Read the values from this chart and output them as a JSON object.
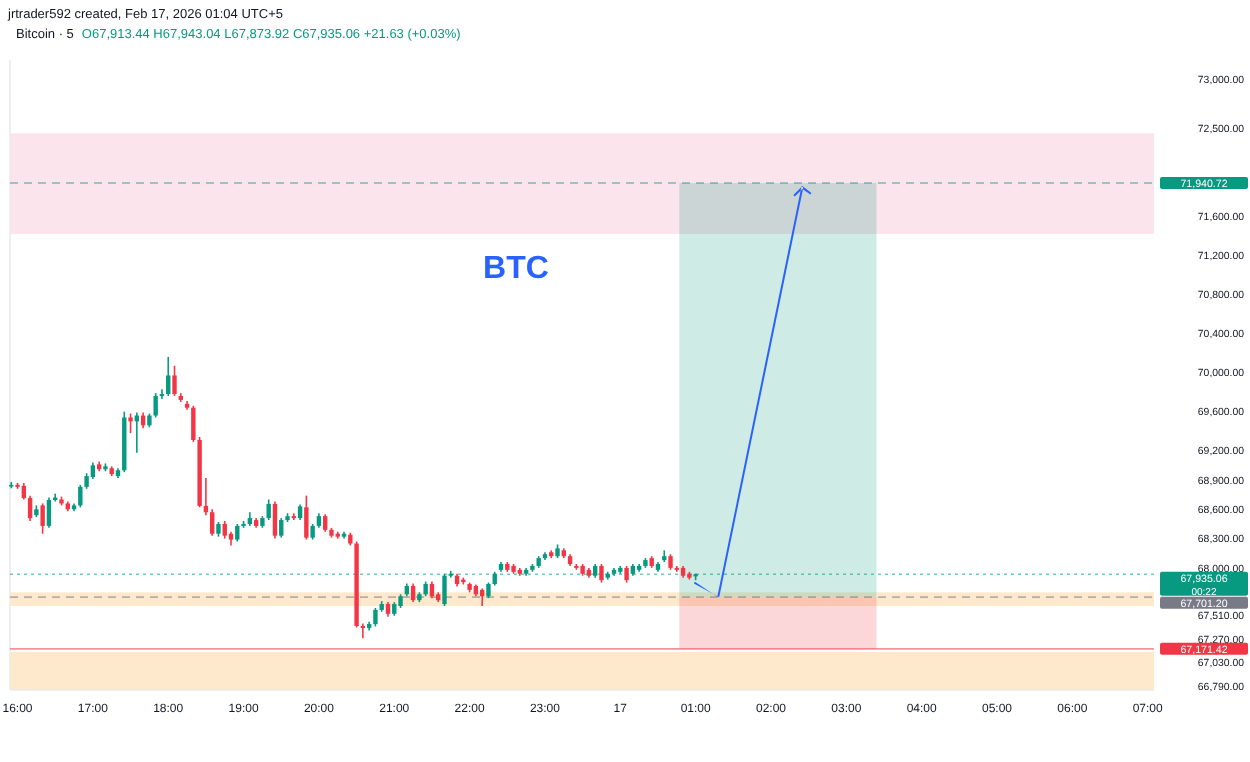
{
  "chart_data": {
    "type": "candlestick",
    "title": "Bitcoin · 5",
    "annotations": [
      "jrtrader592 created, Feb 17, 2026 01:04 UTC+5",
      "O67,913.44 H67,943.04 L67,873.92 C67,935.06 +21.63 (+0.03%)",
      "00:22",
      "BTC"
    ],
    "x": [
      "2026-02-16T15:55",
      "2026-02-16T16:00",
      "2026-02-16T16:05",
      "2026-02-16T16:10",
      "2026-02-16T16:15",
      "2026-02-16T16:20",
      "2026-02-16T16:25",
      "2026-02-16T16:30",
      "2026-02-16T16:35",
      "2026-02-16T16:40",
      "2026-02-16T16:45",
      "2026-02-16T16:50",
      "2026-02-16T16:55",
      "2026-02-16T17:00",
      "2026-02-16T17:05",
      "2026-02-16T17:10",
      "2026-02-16T17:15",
      "2026-02-16T17:20",
      "2026-02-16T17:25",
      "2026-02-16T17:30",
      "2026-02-16T17:35",
      "2026-02-16T17:40",
      "2026-02-16T17:45",
      "2026-02-16T17:50",
      "2026-02-16T17:55",
      "2026-02-16T18:00",
      "2026-02-16T18:05",
      "2026-02-16T18:10",
      "2026-02-16T18:15",
      "2026-02-16T18:20",
      "2026-02-16T18:25",
      "2026-02-16T18:30",
      "2026-02-16T18:35",
      "2026-02-16T18:40",
      "2026-02-16T18:45",
      "2026-02-16T18:50",
      "2026-02-16T18:55",
      "2026-02-16T19:00",
      "2026-02-16T19:05",
      "2026-02-16T19:10",
      "2026-02-16T19:15",
      "2026-02-16T19:20",
      "2026-02-16T19:25",
      "2026-02-16T19:30",
      "2026-02-16T19:35",
      "2026-02-16T19:40",
      "2026-02-16T19:45",
      "2026-02-16T19:50",
      "2026-02-16T19:55",
      "2026-02-16T20:00",
      "2026-02-16T20:05",
      "2026-02-16T20:10",
      "2026-02-16T20:15",
      "2026-02-16T20:20",
      "2026-02-16T20:25",
      "2026-02-16T20:30",
      "2026-02-16T20:35",
      "2026-02-16T20:40",
      "2026-02-16T20:45",
      "2026-02-16T20:50",
      "2026-02-16T20:55",
      "2026-02-16T21:00",
      "2026-02-16T21:05",
      "2026-02-16T21:10",
      "2026-02-16T21:15",
      "2026-02-16T21:20",
      "2026-02-16T21:25",
      "2026-02-16T21:30",
      "2026-02-16T21:35",
      "2026-02-16T21:40",
      "2026-02-16T21:45",
      "2026-02-16T21:50",
      "2026-02-16T21:55",
      "2026-02-16T22:00",
      "2026-02-16T22:05",
      "2026-02-16T22:10",
      "2026-02-16T22:15",
      "2026-02-16T22:20",
      "2026-02-16T22:25",
      "2026-02-16T22:30",
      "2026-02-16T22:35",
      "2026-02-16T22:40",
      "2026-02-16T22:45",
      "2026-02-16T22:50",
      "2026-02-16T22:55",
      "2026-02-16T23:00",
      "2026-02-16T23:05",
      "2026-02-16T23:10",
      "2026-02-16T23:15",
      "2026-02-16T23:20",
      "2026-02-16T23:25",
      "2026-02-16T23:30",
      "2026-02-16T23:35",
      "2026-02-16T23:40",
      "2026-02-16T23:45",
      "2026-02-16T23:50",
      "2026-02-16T23:55",
      "2026-02-17T00:00",
      "2026-02-17T00:05",
      "2026-02-17T00:10",
      "2026-02-17T00:15",
      "2026-02-17T00:20",
      "2026-02-17T00:25",
      "2026-02-17T00:30",
      "2026-02-17T00:35",
      "2026-02-17T00:40",
      "2026-02-17T00:45",
      "2026-02-17T00:50",
      "2026-02-17T00:55",
      "2026-02-17T01:00"
    ],
    "ohlc": [
      [
        68840,
        68880,
        68815,
        68850
      ],
      [
        68850,
        68870,
        68810,
        68830
      ],
      [
        68840,
        68870,
        68700,
        68715
      ],
      [
        68715,
        68740,
        68480,
        68510
      ],
      [
        68540,
        68640,
        68520,
        68600
      ],
      [
        68640,
        68660,
        68350,
        68430
      ],
      [
        68430,
        68720,
        68410,
        68695
      ],
      [
        68695,
        68760,
        68680,
        68720
      ],
      [
        68700,
        68730,
        68640,
        68660
      ],
      [
        68660,
        68680,
        68580,
        68600
      ],
      [
        68600,
        68660,
        68580,
        68640
      ],
      [
        68640,
        68850,
        68620,
        68830
      ],
      [
        68830,
        68970,
        68810,
        68940
      ],
      [
        68930,
        69080,
        68910,
        69050
      ],
      [
        69060,
        69090,
        68990,
        69010
      ],
      [
        69010,
        69070,
        68990,
        69040
      ],
      [
        69020,
        69040,
        68940,
        68960
      ],
      [
        68940,
        69020,
        68920,
        69000
      ],
      [
        69000,
        69600,
        68980,
        69540
      ],
      [
        69540,
        69580,
        69380,
        69500
      ],
      [
        69500,
        69590,
        69180,
        69560
      ],
      [
        69560,
        69590,
        69430,
        69460
      ],
      [
        69460,
        69580,
        69440,
        69560
      ],
      [
        69560,
        69790,
        69540,
        69760
      ],
      [
        69760,
        69830,
        69730,
        69780
      ],
      [
        69780,
        70160,
        69760,
        69970
      ],
      [
        69970,
        70070,
        69760,
        69780
      ],
      [
        69760,
        69790,
        69700,
        69720
      ],
      [
        69680,
        69710,
        69620,
        69640
      ],
      [
        69640,
        69660,
        69290,
        69310
      ],
      [
        69310,
        69340,
        68620,
        68635
      ],
      [
        68635,
        68920,
        68540,
        68570
      ],
      [
        68570,
        68600,
        68330,
        68350
      ],
      [
        68350,
        68470,
        68320,
        68450
      ],
      [
        68450,
        68480,
        68300,
        68330
      ],
      [
        68350,
        68370,
        68230,
        68290
      ],
      [
        68290,
        68450,
        68270,
        68430
      ],
      [
        68430,
        68480,
        68410,
        68450
      ],
      [
        68450,
        68570,
        68430,
        68510
      ],
      [
        68490,
        68510,
        68410,
        68430
      ],
      [
        68430,
        68530,
        68410,
        68510
      ],
      [
        68510,
        68700,
        68490,
        68655
      ],
      [
        68655,
        68680,
        68300,
        68330
      ],
      [
        68330,
        68510,
        68310,
        68490
      ],
      [
        68490,
        68560,
        68470,
        68530
      ],
      [
        68530,
        68560,
        68490,
        68510
      ],
      [
        68510,
        68650,
        68490,
        68630
      ],
      [
        68620,
        68740,
        68290,
        68310
      ],
      [
        68310,
        68450,
        68290,
        68430
      ],
      [
        68430,
        68560,
        68410,
        68530
      ],
      [
        68530,
        68550,
        68370,
        68390
      ],
      [
        68390,
        68410,
        68310,
        68330
      ],
      [
        68350,
        68370,
        68300,
        68320
      ],
      [
        68320,
        68370,
        68300,
        68350
      ],
      [
        68340,
        68360,
        68230,
        68250
      ],
      [
        68250,
        68270,
        67390,
        67405
      ],
      [
        67405,
        67430,
        67280,
        67385
      ],
      [
        67385,
        67450,
        67360,
        67425
      ],
      [
        67425,
        67590,
        67400,
        67570
      ],
      [
        67570,
        67660,
        67550,
        67630
      ],
      [
        67630,
        67650,
        67500,
        67530
      ],
      [
        67530,
        67650,
        67510,
        67630
      ],
      [
        67610,
        67730,
        67590,
        67710
      ],
      [
        67730,
        67840,
        67710,
        67815
      ],
      [
        67815,
        67840,
        67650,
        67670
      ],
      [
        67670,
        67750,
        67650,
        67730
      ],
      [
        67730,
        67860,
        67710,
        67835
      ],
      [
        67835,
        67860,
        67690,
        67710
      ],
      [
        67730,
        67750,
        67650,
        67670
      ],
      [
        67630,
        67940,
        67610,
        67920
      ],
      [
        67920,
        67970,
        67900,
        67940
      ],
      [
        67920,
        67940,
        67810,
        67835
      ],
      [
        67880,
        67900,
        67830,
        67855
      ],
      [
        67835,
        67850,
        67750,
        67775
      ],
      [
        67815,
        67830,
        67710,
        67730
      ],
      [
        67775,
        67790,
        67610,
        67710
      ],
      [
        67710,
        67850,
        67690,
        67835
      ],
      [
        67835,
        67960,
        67820,
        67940
      ],
      [
        67980,
        68060,
        67960,
        68040
      ],
      [
        68040,
        68060,
        67960,
        67980
      ],
      [
        68020,
        68040,
        67940,
        67960
      ],
      [
        67980,
        68000,
        67920,
        67940
      ],
      [
        67940,
        68000,
        67920,
        67980
      ],
      [
        67980,
        68040,
        67960,
        68020
      ],
      [
        68020,
        68120,
        68000,
        68100
      ],
      [
        68100,
        68160,
        68080,
        68140
      ],
      [
        68160,
        68180,
        68100,
        68120
      ],
      [
        68120,
        68240,
        68100,
        68200
      ],
      [
        68180,
        68200,
        68100,
        68120
      ],
      [
        68120,
        68140,
        68020,
        68040
      ],
      [
        68020,
        68040,
        67980,
        68000
      ],
      [
        68020,
        68040,
        67920,
        67940
      ],
      [
        67980,
        68000,
        67900,
        67920
      ],
      [
        67920,
        68040,
        67900,
        68020
      ],
      [
        68020,
        68040,
        67850,
        67875
      ],
      [
        67900,
        67960,
        67880,
        67940
      ],
      [
        67940,
        68000,
        67920,
        67980
      ],
      [
        67960,
        68020,
        67940,
        68000
      ],
      [
        68000,
        68020,
        67850,
        67875
      ],
      [
        67940,
        68040,
        67920,
        68020
      ],
      [
        67980,
        68040,
        67960,
        68020
      ],
      [
        68020,
        68100,
        68000,
        68080
      ],
      [
        68100,
        68120,
        68000,
        68020
      ],
      [
        67980,
        68060,
        67960,
        68040
      ],
      [
        68080,
        68180,
        68060,
        68120
      ],
      [
        68120,
        68140,
        67980,
        68000
      ],
      [
        68000,
        68020,
        67960,
        67980
      ],
      [
        68000,
        68020,
        67900,
        67920
      ],
      [
        67940,
        67960,
        67880,
        67900
      ],
      [
        67913.44,
        67943.04,
        67873.92,
        67935.06
      ]
    ],
    "xlim": [
      "2026-02-16T15:54",
      "2026-02-17T07:05"
    ],
    "xticks": [
      {
        "value": "2026-02-16T16:00",
        "label": "16:00"
      },
      {
        "value": "2026-02-16T17:00",
        "label": "17:00"
      },
      {
        "value": "2026-02-16T18:00",
        "label": "18:00"
      },
      {
        "value": "2026-02-16T19:00",
        "label": "19:00"
      },
      {
        "value": "2026-02-16T20:00",
        "label": "20:00"
      },
      {
        "value": "2026-02-16T21:00",
        "label": "21:00"
      },
      {
        "value": "2026-02-16T22:00",
        "label": "22:00"
      },
      {
        "value": "2026-02-16T23:00",
        "label": "23:00"
      },
      {
        "value": "2026-02-17T00:00",
        "label": "17"
      },
      {
        "value": "2026-02-17T01:00",
        "label": "01:00"
      },
      {
        "value": "2026-02-17T02:00",
        "label": "02:00"
      },
      {
        "value": "2026-02-17T03:00",
        "label": "03:00"
      },
      {
        "value": "2026-02-17T04:00",
        "label": "04:00"
      },
      {
        "value": "2026-02-17T05:00",
        "label": "05:00"
      },
      {
        "value": "2026-02-17T06:00",
        "label": "06:00"
      },
      {
        "value": "2026-02-17T07:00",
        "label": "07:00"
      }
    ],
    "ylim": [
      66750,
      73200
    ],
    "yticks": [
      {
        "value": 66790,
        "label": "66,790.00"
      },
      {
        "value": 67030,
        "label": "67,030.00"
      },
      {
        "value": 67270,
        "label": "67,270.00"
      },
      {
        "value": 67510,
        "label": "67,510.00"
      },
      {
        "value": 68000,
        "label": "68,000.00"
      },
      {
        "value": 68300,
        "label": "68,300.00"
      },
      {
        "value": 68600,
        "label": "68,600.00"
      },
      {
        "value": 68900,
        "label": "68,900.00"
      },
      {
        "value": 69200,
        "label": "69,200.00"
      },
      {
        "value": 69600,
        "label": "69,600.00"
      },
      {
        "value": 70000,
        "label": "70,000.00"
      },
      {
        "value": 70400,
        "label": "70,400.00"
      },
      {
        "value": 70800,
        "label": "70,800.00"
      },
      {
        "value": 71200,
        "label": "71,200.00"
      },
      {
        "value": 71600,
        "label": "71,600.00"
      },
      {
        "value": 72500,
        "label": "72,500.00"
      },
      {
        "value": 73000,
        "label": "73,000.00"
      }
    ],
    "bands": [
      {
        "axis": "y",
        "from": 71420,
        "to": 72450,
        "color": "#fce4ec"
      },
      {
        "axis": "y",
        "from": 66750,
        "to": 67140,
        "color": "#ffe9cc"
      },
      {
        "axis": "y",
        "from": 67610,
        "to": 67750,
        "color": "#ffe9cc"
      }
    ],
    "ref_lines": [
      {
        "axis": "y",
        "value": 71940.72,
        "label": "71,940.72",
        "color": "#089981",
        "line_style": "dashed"
      },
      {
        "axis": "y",
        "value": 67935.06,
        "label": "67,935.06",
        "color": "#089981",
        "line_style": "dotted"
      },
      {
        "axis": "y",
        "value": 67701.2,
        "label": "67,701.20",
        "color": "#787b86",
        "line_style": "dashed"
      },
      {
        "axis": "y",
        "value": 67171.42,
        "label": "67,171.42",
        "color": "#f23645",
        "line_style": "solid"
      }
    ]
  }
}
